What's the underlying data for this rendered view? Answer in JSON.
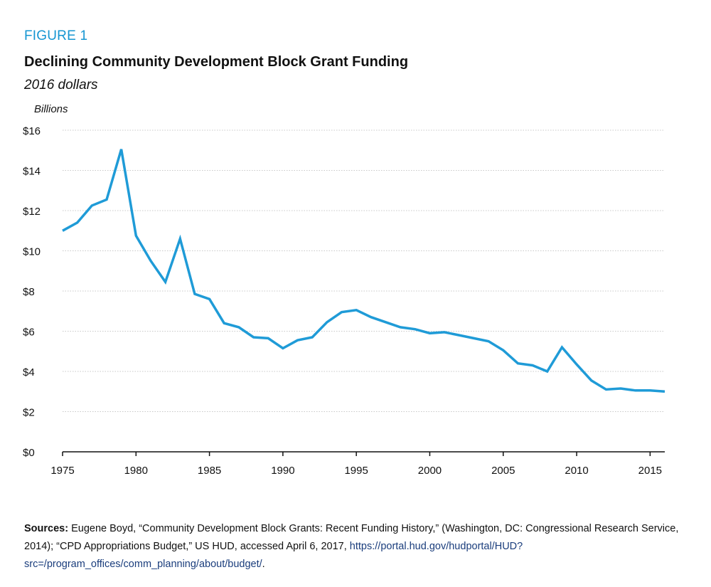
{
  "figure": {
    "label": "FIGURE 1",
    "title": "Declining Community Development Block Grant Funding",
    "subtitle": "2016 dollars"
  },
  "chart_data": {
    "type": "line",
    "ylabel": "Billions",
    "ylim": [
      0,
      16
    ],
    "xlim": [
      1975,
      2016
    ],
    "y_ticks": [
      0,
      2,
      4,
      6,
      8,
      10,
      12,
      14,
      16
    ],
    "y_tick_labels": [
      "$0",
      "$2",
      "$4",
      "$6",
      "$8",
      "$10",
      "$12",
      "$14",
      "$16"
    ],
    "x_ticks": [
      1975,
      1980,
      1985,
      1990,
      1995,
      2000,
      2005,
      2010,
      2015
    ],
    "x_tick_labels": [
      "1975",
      "1980",
      "1985",
      "1990",
      "1995",
      "2000",
      "2005",
      "2010",
      "2015"
    ],
    "grid": true,
    "line_color": "#1f9bd7",
    "x": [
      1975,
      1976,
      1977,
      1978,
      1979,
      1980,
      1981,
      1982,
      1983,
      1984,
      1985,
      1986,
      1987,
      1988,
      1989,
      1990,
      1991,
      1992,
      1993,
      1994,
      1995,
      1996,
      1997,
      1998,
      1999,
      2000,
      2001,
      2002,
      2003,
      2004,
      2005,
      2006,
      2007,
      2008,
      2009,
      2010,
      2011,
      2012,
      2013,
      2014,
      2015,
      2016
    ],
    "series": [
      {
        "values": [
          11.0,
          11.4,
          12.25,
          12.55,
          15.05,
          10.75,
          9.5,
          8.45,
          10.6,
          7.85,
          7.6,
          6.4,
          6.2,
          5.7,
          5.65,
          5.15,
          5.55,
          5.7,
          6.45,
          6.95,
          7.05,
          6.7,
          6.45,
          6.2,
          6.1,
          5.9,
          5.95,
          5.8,
          5.65,
          5.5,
          5.05,
          4.4,
          4.3,
          4.0,
          5.2,
          4.35,
          3.55,
          3.1,
          3.15,
          3.05,
          3.05,
          3.0
        ]
      }
    ]
  },
  "sources": {
    "label": "Sources:",
    "text": "Eugene Boyd, “Community Development Block Grants: Recent Funding History,” (Washington, DC: Congressional Research Service, 2014); “CPD Appropriations Budget,” US HUD, accessed April 6, 2017,",
    "link": "https://portal.hud.gov/hudportal/HUD?src=/program_offices/comm_planning/about/budget/",
    "end": "."
  }
}
